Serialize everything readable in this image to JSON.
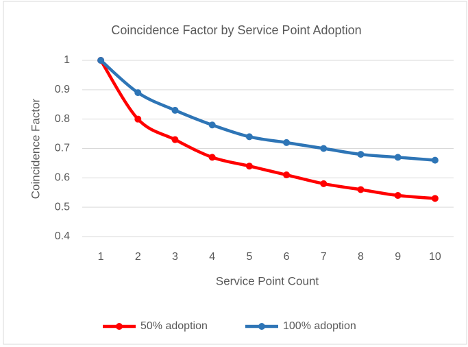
{
  "chart_data": {
    "type": "line",
    "title": "Coincidence Factor by Service Point Adoption",
    "x_label": "Service Point Count",
    "y_label": "Coincidence Factor",
    "x": [
      1,
      2,
      3,
      4,
      5,
      6,
      7,
      8,
      9,
      10
    ],
    "series": [
      {
        "name": "50% adoption",
        "color": "#ff0000",
        "values": [
          1,
          0.8,
          0.73,
          0.67,
          0.64,
          0.61,
          0.58,
          0.56,
          0.54,
          0.53
        ]
      },
      {
        "name": "100% adoption",
        "color": "#2e75b6",
        "values": [
          1,
          0.89,
          0.83,
          0.78,
          0.74,
          0.72,
          0.7,
          0.68,
          0.67,
          0.66
        ]
      }
    ],
    "xlim": [
      0.5,
      10.5
    ],
    "xticks": [
      1,
      2,
      3,
      4,
      5,
      6,
      7,
      8,
      9,
      10
    ],
    "ylim": [
      0.4,
      1
    ],
    "yticks": [
      0.4,
      0.5,
      0.6,
      0.7,
      0.8,
      0.9,
      1
    ],
    "grid": true,
    "legend": "bottom",
    "smooth": true
  }
}
